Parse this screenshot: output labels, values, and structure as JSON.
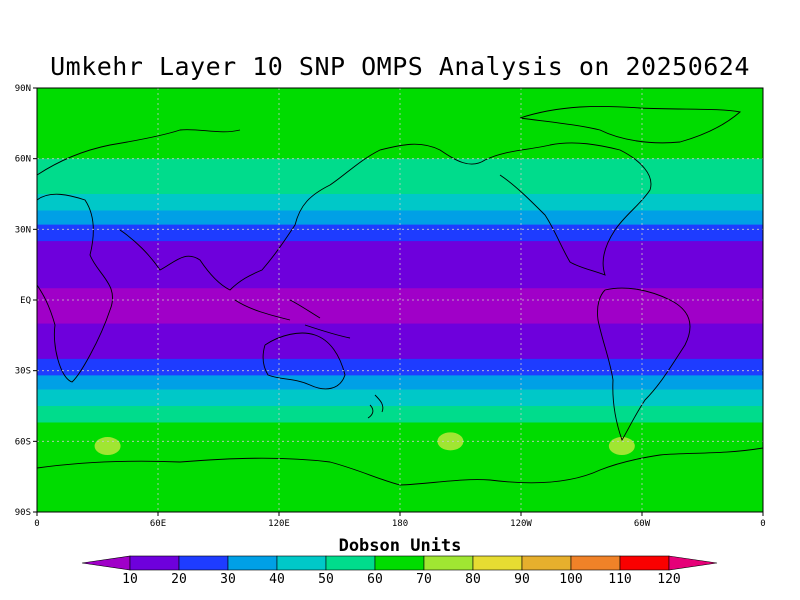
{
  "title": "Umkehr Layer 10 SNP OMPS Analysis on 20250624",
  "colorbar": {
    "label": "Dobson Units",
    "levels": [
      "10",
      "20",
      "30",
      "40",
      "50",
      "60",
      "70",
      "80",
      "90",
      "100",
      "110",
      "120"
    ],
    "colors": [
      "#a000c8",
      "#6e00dc",
      "#1e3cff",
      "#00a0e6",
      "#00c8c8",
      "#00dc8c",
      "#00dc00",
      "#a0e632",
      "#e6dc32",
      "#e6af2d",
      "#f08228",
      "#fa0000",
      "#e60078"
    ]
  },
  "chart_data": {
    "type": "heatmap",
    "title": "Umkehr Layer 10 SNP OMPS Analysis on 20250624",
    "variable": "Dobson Units",
    "xlim": [
      0,
      360
    ],
    "ylim": [
      -90,
      90
    ],
    "x_ticks": [
      "0",
      "60E",
      "120E",
      "180",
      "120W",
      "60W",
      "0"
    ],
    "y_ticks": [
      "90N",
      "60N",
      "30N",
      "EQ",
      "30S",
      "60S",
      "90S"
    ],
    "zonal_bands": [
      {
        "lat_range": [
          60,
          90
        ],
        "value_range": "60-70",
        "color": "#00dc00"
      },
      {
        "lat_range": [
          45,
          60
        ],
        "value_range": "50-60",
        "color": "#00dc8c"
      },
      {
        "lat_range": [
          38,
          45
        ],
        "value_range": "40-50",
        "color": "#00c8c8"
      },
      {
        "lat_range": [
          32,
          38
        ],
        "value_range": "30-40",
        "color": "#00a0e6"
      },
      {
        "lat_range": [
          25,
          32
        ],
        "value_range": "20-30",
        "color": "#1e3cff"
      },
      {
        "lat_range": [
          5,
          25
        ],
        "value_range": "10-20",
        "color": "#6e00dc"
      },
      {
        "lat_range": [
          -10,
          5
        ],
        "value_range": "<10",
        "color": "#a000c8"
      },
      {
        "lat_range": [
          -25,
          -10
        ],
        "value_range": "10-20",
        "color": "#6e00dc"
      },
      {
        "lat_range": [
          -32,
          -25
        ],
        "value_range": "20-30",
        "color": "#1e3cff"
      },
      {
        "lat_range": [
          -38,
          -32
        ],
        "value_range": "30-40",
        "color": "#00a0e6"
      },
      {
        "lat_range": [
          -45,
          -38
        ],
        "value_range": "40-50",
        "color": "#00c8c8"
      },
      {
        "lat_range": [
          -52,
          -45
        ],
        "value_range": "50-60",
        "color": "#00dc8c"
      },
      {
        "lat_range": [
          -90,
          -52
        ],
        "value_range": "60-70",
        "color": "#00dc00"
      }
    ],
    "local_maxima": [
      {
        "lon": 35,
        "lat": -62,
        "value_range": "70-80",
        "color": "#a0e632"
      },
      {
        "lon": 205,
        "lat": -60,
        "value_range": "70-80",
        "color": "#a0e632"
      },
      {
        "lon": 290,
        "lat": -62,
        "value_range": "70-80",
        "color": "#a0e632"
      }
    ]
  }
}
